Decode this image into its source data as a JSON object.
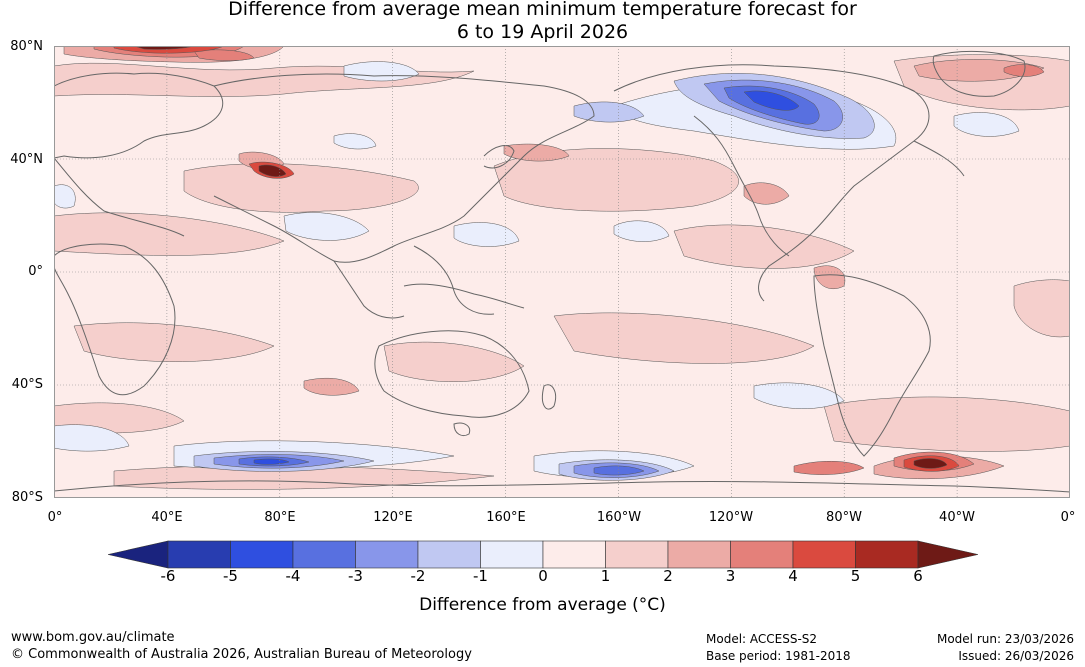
{
  "title": {
    "line1": "Difference from average mean minimum temperature forecast for",
    "line2": "6 to 19 April 2026"
  },
  "axes": {
    "lat_labels": [
      "80°N",
      "40°N",
      "0°",
      "40°S",
      "80°S"
    ],
    "lon_labels": [
      "0°",
      "40°E",
      "80°E",
      "120°E",
      "160°E",
      "160°W",
      "120°W",
      "80°W",
      "40°W",
      "0°"
    ]
  },
  "legend": {
    "title": "Difference from average (°C)",
    "ticks": [
      "-6",
      "-5",
      "-4",
      "-3",
      "-2",
      "-1",
      "0",
      "1",
      "2",
      "3",
      "4",
      "5",
      "6"
    ],
    "colors": [
      "#1a237e",
      "#283db0",
      "#2f4fe0",
      "#5870e0",
      "#8896ea",
      "#c0c8f2",
      "#eaeefc",
      "#fdecea",
      "#f5cfcc",
      "#ecaba6",
      "#e4807a",
      "#da4a3f",
      "#a92a22",
      "#6e1a16"
    ]
  },
  "map": {
    "contour_color": "#555555",
    "coast_color": "#666666",
    "base_color": "#fdecea"
  },
  "footer": {
    "website": "www.bom.gov.au/climate",
    "copyright": "© Commonwealth of Australia 2026, Australian Bureau of Meteorology",
    "model": "Model: ACCESS-S2",
    "base_period": "Base period: 1981-2018",
    "model_run": "Model run: 23/03/2026",
    "issued": "Issued: 26/03/2026"
  }
}
